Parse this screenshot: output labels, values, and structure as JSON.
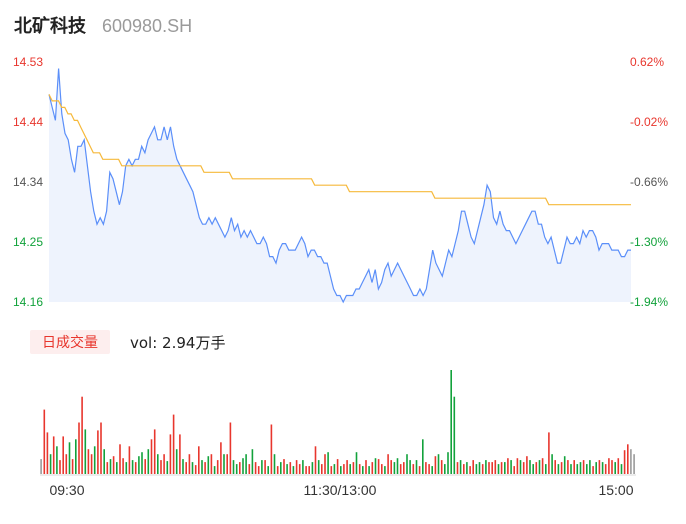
{
  "header": {
    "name": "北矿科技",
    "code": "600980.SH"
  },
  "volume_panel": {
    "badge_label": "日成交量",
    "vol_label": "vol: 2.94万手"
  },
  "colors": {
    "price_line": "#5b8ff9",
    "avg_line": "#f6b93b",
    "up": "#e8362d",
    "down": "#12a23b",
    "neutral": "#555555"
  },
  "chart_data": [
    {
      "type": "line",
      "title": "",
      "y_left_ticks": [
        "14.53",
        "14.44",
        "14.34",
        "14.25",
        "14.16"
      ],
      "y_right_ticks": [
        "0.62%",
        "-0.02%",
        "-0.66%",
        "-1.30%",
        "-1.94%"
      ],
      "ylim": [
        14.16,
        14.53
      ],
      "x_ticks": [
        "09:30",
        "11:30/13:00",
        "15:00"
      ],
      "series": [
        {
          "role": "price",
          "values": [
            14.48,
            14.46,
            14.44,
            14.52,
            14.45,
            14.42,
            14.41,
            14.38,
            14.36,
            14.4,
            14.4,
            14.41,
            14.37,
            14.33,
            14.3,
            14.28,
            14.29,
            14.28,
            14.3,
            14.36,
            14.35,
            14.33,
            14.31,
            14.33,
            14.37,
            14.38,
            14.37,
            14.38,
            14.38,
            14.4,
            14.39,
            14.41,
            14.42,
            14.43,
            14.41,
            14.41,
            14.43,
            14.41,
            14.43,
            14.4,
            14.38,
            14.37,
            14.36,
            14.35,
            14.34,
            14.33,
            14.31,
            14.29,
            14.28,
            14.28,
            14.29,
            14.28,
            14.29,
            14.28,
            14.27,
            14.26,
            14.27,
            14.29,
            14.27,
            14.28,
            14.26,
            14.27,
            14.26,
            14.27,
            14.26,
            14.25,
            14.25,
            14.26,
            14.25,
            14.23,
            14.23,
            14.22,
            14.24,
            14.25,
            14.25,
            14.24,
            14.24,
            14.24,
            14.25,
            14.26,
            14.25,
            14.23,
            14.24,
            14.24,
            14.23,
            14.23,
            14.22,
            14.22,
            14.2,
            14.18,
            14.17,
            14.17,
            14.16,
            14.17,
            14.17,
            14.17,
            14.18,
            14.18,
            14.19,
            14.2,
            14.21,
            14.19,
            14.21,
            14.18,
            14.19,
            14.21,
            14.22,
            14.2,
            14.21,
            14.22,
            14.21,
            14.2,
            14.19,
            14.18,
            14.17,
            14.17,
            14.18,
            14.17,
            14.18,
            14.21,
            14.24,
            14.22,
            14.21,
            14.2,
            14.22,
            14.24,
            14.23,
            14.25,
            14.27,
            14.3,
            14.3,
            14.28,
            14.26,
            14.25,
            14.27,
            14.29,
            14.31,
            14.34,
            14.33,
            14.29,
            14.28,
            14.3,
            14.28,
            14.27,
            14.27,
            14.26,
            14.25,
            14.26,
            14.27,
            14.28,
            14.29,
            14.3,
            14.3,
            14.28,
            14.28,
            14.26,
            14.25,
            14.26,
            14.24,
            14.22,
            14.22,
            14.24,
            14.26,
            14.25,
            14.25,
            14.26,
            14.25,
            14.27,
            14.26,
            14.27,
            14.27,
            14.26,
            14.24,
            14.25,
            14.25,
            14.25,
            14.24,
            14.24,
            14.24,
            14.23,
            14.23,
            14.24,
            14.24
          ]
        },
        {
          "role": "average",
          "values": [
            14.48,
            14.47,
            14.47,
            14.47,
            14.46,
            14.46,
            14.45,
            14.45,
            14.44,
            14.44,
            14.43,
            14.42,
            14.41,
            14.4,
            14.39,
            14.39,
            14.39,
            14.38,
            14.38,
            14.38,
            14.38,
            14.38,
            14.38,
            14.37,
            14.37,
            14.37,
            14.37,
            14.37,
            14.37,
            14.37,
            14.37,
            14.37,
            14.37,
            14.37,
            14.37,
            14.37,
            14.37,
            14.37,
            14.37,
            14.37,
            14.37,
            14.37,
            14.37,
            14.37,
            14.37,
            14.37,
            14.37,
            14.37,
            14.37,
            14.36,
            14.36,
            14.36,
            14.36,
            14.36,
            14.36,
            14.36,
            14.36,
            14.36,
            14.35,
            14.35,
            14.35,
            14.35,
            14.35,
            14.35,
            14.35,
            14.35,
            14.35,
            14.35,
            14.35,
            14.35,
            14.35,
            14.35,
            14.35,
            14.35,
            14.35,
            14.35,
            14.35,
            14.35,
            14.35,
            14.35,
            14.35,
            14.35,
            14.35,
            14.35,
            14.34,
            14.34,
            14.34,
            14.34,
            14.34,
            14.34,
            14.34,
            14.34,
            14.34,
            14.34,
            14.34,
            14.33,
            14.33,
            14.33,
            14.33,
            14.33,
            14.33,
            14.33,
            14.33,
            14.33,
            14.33,
            14.33,
            14.33,
            14.33,
            14.33,
            14.33,
            14.33,
            14.33,
            14.33,
            14.33,
            14.33,
            14.33,
            14.33,
            14.33,
            14.33,
            14.33,
            14.33,
            14.33,
            14.32,
            14.32,
            14.32,
            14.32,
            14.32,
            14.32,
            14.32,
            14.32,
            14.32,
            14.32,
            14.32,
            14.32,
            14.32,
            14.32,
            14.32,
            14.32,
            14.32,
            14.32,
            14.32,
            14.32,
            14.32,
            14.32,
            14.32,
            14.32,
            14.32,
            14.32,
            14.32,
            14.32,
            14.32,
            14.32,
            14.32,
            14.32,
            14.32,
            14.32,
            14.32,
            14.32,
            14.31,
            14.31,
            14.31,
            14.31,
            14.31,
            14.31,
            14.31,
            14.31,
            14.31,
            14.31,
            14.31,
            14.31,
            14.31,
            14.31,
            14.31,
            14.31,
            14.31,
            14.31,
            14.31,
            14.31,
            14.31,
            14.31,
            14.31,
            14.31,
            14.31,
            14.31,
            14.31
          ]
        }
      ]
    },
    {
      "type": "bar",
      "title": "",
      "series": [
        {
          "role": "volume",
          "values": [
            15,
            65,
            42,
            20,
            38,
            28,
            14,
            38,
            20,
            32,
            15,
            35,
            52,
            78,
            45,
            25,
            20,
            28,
            44,
            52,
            25,
            12,
            15,
            18,
            12,
            30,
            16,
            12,
            28,
            14,
            12,
            18,
            22,
            15,
            25,
            35,
            45,
            20,
            14,
            20,
            13,
            40,
            60,
            25,
            40,
            15,
            12,
            20,
            12,
            9,
            28,
            14,
            12,
            18,
            20,
            8,
            14,
            32,
            20,
            20,
            52,
            14,
            10,
            12,
            16,
            20,
            10,
            25,
            12,
            8,
            14,
            14,
            8,
            50,
            20,
            8,
            12,
            15,
            10,
            12,
            8,
            14,
            10,
            14,
            8,
            8,
            12,
            28,
            14,
            10,
            20,
            22,
            8,
            10,
            15,
            8,
            10,
            14,
            10,
            12,
            22,
            10,
            8,
            14,
            8,
            12,
            16,
            15,
            10,
            8,
            20,
            14,
            12,
            16,
            10,
            12,
            20,
            14,
            10,
            14,
            8,
            35,
            12,
            10,
            8,
            18,
            20,
            14,
            10,
            22,
            105,
            78,
            12,
            14,
            10,
            12,
            8,
            14,
            10,
            12,
            10,
            14,
            12,
            12,
            14,
            10,
            12,
            12,
            16,
            14,
            8,
            16,
            14,
            12,
            18,
            14,
            10,
            12,
            14,
            16,
            10,
            42,
            20,
            14,
            10,
            12,
            18,
            14,
            10,
            14,
            10,
            12,
            14,
            10,
            14,
            8,
            12,
            14,
            12,
            10,
            16,
            14,
            12,
            16,
            10,
            24,
            30,
            25,
            20
          ]
        },
        {
          "role": "direction",
          "values": [
            0,
            1,
            1,
            2,
            1,
            2,
            1,
            1,
            1,
            2,
            1,
            2,
            1,
            1,
            2,
            1,
            1,
            2,
            1,
            1,
            2,
            1,
            2,
            1,
            2,
            1,
            1,
            2,
            1,
            2,
            1,
            2,
            2,
            1,
            2,
            1,
            1,
            2,
            1,
            1,
            2,
            1,
            1,
            2,
            1,
            2,
            1,
            1,
            2,
            1,
            1,
            2,
            1,
            2,
            1,
            2,
            1,
            1,
            2,
            1,
            1,
            2,
            2,
            1,
            2,
            2,
            1,
            2,
            1,
            1,
            2,
            1,
            2,
            1,
            2,
            1,
            2,
            1,
            2,
            1,
            2,
            1,
            1,
            2,
            1,
            1,
            2,
            1,
            2,
            1,
            1,
            2,
            1,
            2,
            1,
            2,
            1,
            1,
            2,
            1,
            2,
            1,
            2,
            1,
            2,
            1,
            2,
            1,
            1,
            2,
            1,
            1,
            2,
            2,
            1,
            1,
            2,
            2,
            1,
            2,
            1,
            2,
            1,
            1,
            2,
            1,
            2,
            1,
            2,
            2,
            2,
            2,
            1,
            2,
            1,
            2,
            1,
            1,
            2,
            2,
            1,
            2,
            1,
            1,
            1,
            2,
            1,
            2,
            1,
            2,
            1,
            1,
            2,
            1,
            1,
            2,
            2,
            1,
            2,
            1,
            2,
            1,
            2,
            1,
            2,
            1,
            2,
            1,
            2,
            1,
            2,
            2,
            1,
            2,
            2,
            1,
            2,
            1,
            2,
            1,
            1,
            1,
            2,
            1,
            2,
            1,
            1
          ]
        }
      ]
    }
  ]
}
